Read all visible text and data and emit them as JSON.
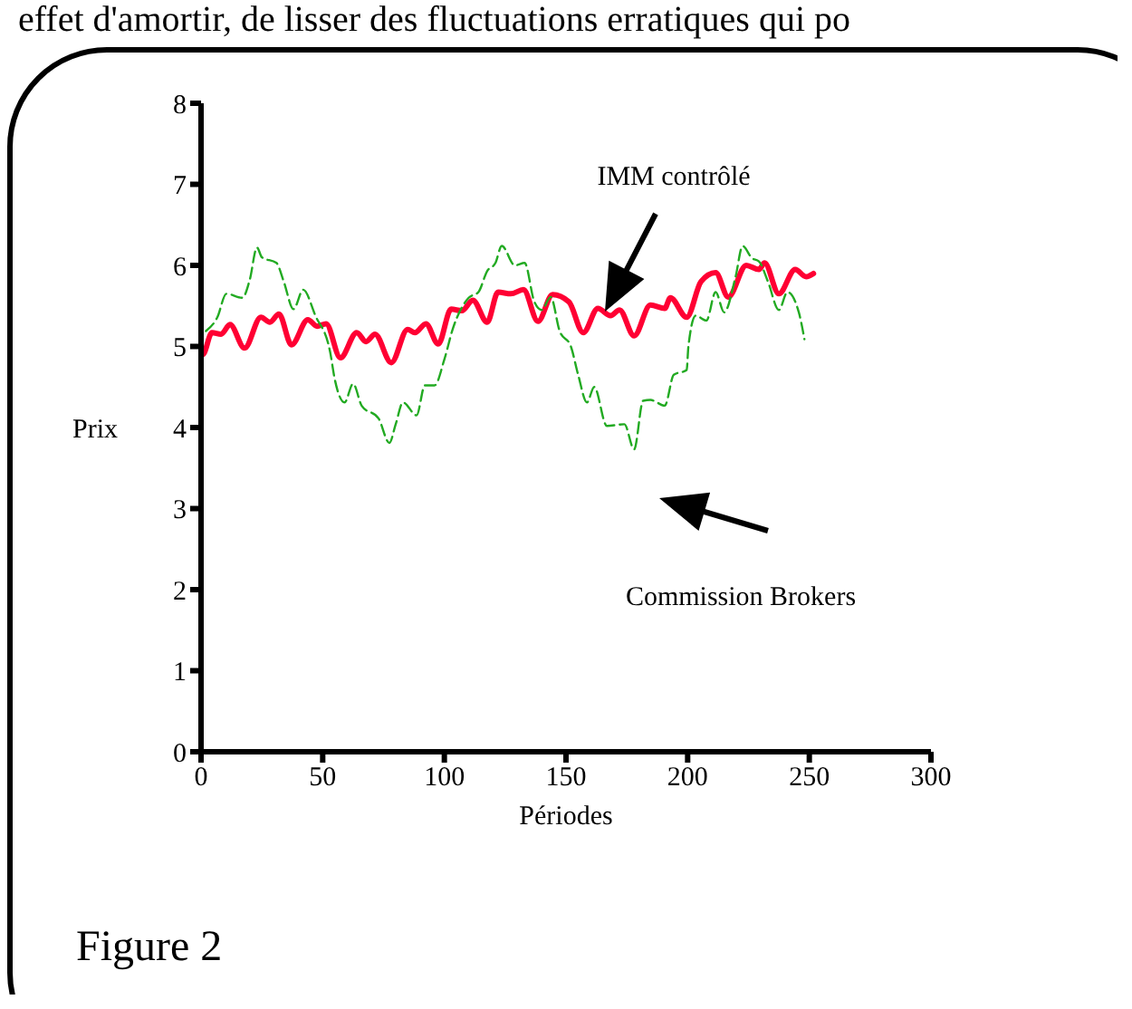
{
  "chart_data": {
    "type": "line",
    "xlabel": "Périodes",
    "ylabel": "Prix",
    "xlim": [
      0,
      300
    ],
    "xticks": [
      0,
      50,
      100,
      150,
      200,
      250,
      300
    ],
    "ylim": [
      0,
      8
    ],
    "yticks": [
      0,
      1,
      2,
      3,
      4,
      5,
      6,
      7,
      8
    ],
    "marker": "none",
    "series": [
      {
        "color": "#ff0033",
        "line_style": "solid",
        "x": [
          0,
          0.7,
          4.5,
          8.2,
          11.9,
          17.9,
          24.6,
          28.3,
          32,
          37.2,
          43.9,
          47.7,
          51.4,
          57.3,
          64,
          67.8,
          71.5,
          78.2,
          84.9,
          87.9,
          92.4,
          97.5,
          102.8,
          107.2,
          111.7,
          117.6,
          122.1,
          127.3,
          132.5,
          138.5,
          144.5,
          151.2,
          157.1,
          163.1,
          168.3,
          172,
          178,
          184.7,
          190.6,
          192.9,
          199.6,
          205.5,
          211.5,
          216.7,
          224.1,
          229.3,
          231.6,
          237.5,
          244.2,
          248.7,
          251.7
        ],
        "values": [
          4.95,
          4.9,
          5.17,
          5.15,
          5.27,
          4.98,
          5.36,
          5.3,
          5.4,
          5.02,
          5.33,
          5.25,
          5.28,
          4.86,
          5.17,
          5.06,
          5.15,
          4.8,
          5.21,
          5.17,
          5.28,
          5.03,
          5.46,
          5.44,
          5.57,
          5.3,
          5.67,
          5.65,
          5.7,
          5.31,
          5.64,
          5.55,
          5.17,
          5.47,
          5.38,
          5.45,
          5.13,
          5.51,
          5.47,
          5.6,
          5.36,
          5.8,
          5.91,
          5.61,
          6.0,
          5.95,
          6.03,
          5.65,
          5.95,
          5.86,
          5.9
        ]
      },
      {
        "color": "#22aa22",
        "line_style": "dashed",
        "x": [
          2,
          6.7,
          10.4,
          17,
          20,
          23,
          25,
          31,
          34,
          38,
          42,
          47,
          53,
          55,
          59,
          62.5,
          66,
          73,
          77.4,
          80,
          83,
          88.6,
          92,
          96,
          100,
          103.5,
          110,
          114,
          117.6,
          121,
          123.6,
          129,
          133,
          137,
          140,
          143.7,
          147.4,
          152,
          155,
          158.6,
          161.6,
          166.8,
          174,
          178,
          181.7,
          184.7,
          190.6,
          194.3,
          199.6,
          200.3,
          203.3,
          207.7,
          211.5,
          215,
          219.7,
          222.6,
          226.4,
          229.3,
          233,
          237.5,
          241,
          245.7,
          248
        ],
        "values": [
          5.19,
          5.36,
          5.65,
          5.6,
          5.82,
          6.22,
          6.1,
          6.03,
          5.8,
          5.46,
          5.7,
          5.38,
          4.94,
          4.59,
          4.31,
          4.54,
          4.27,
          4.11,
          3.81,
          4.04,
          4.31,
          4.15,
          4.52,
          4.52,
          4.84,
          5.22,
          5.6,
          5.67,
          5.93,
          6.03,
          6.24,
          6.0,
          6.03,
          5.55,
          5.45,
          5.61,
          5.19,
          5.0,
          4.65,
          4.31,
          4.5,
          4.02,
          4.04,
          3.73,
          4.33,
          4.34,
          4.27,
          4.65,
          4.71,
          5.0,
          5.38,
          5.32,
          5.67,
          5.42,
          5.86,
          6.24,
          6.09,
          6.05,
          5.8,
          5.45,
          5.67,
          5.42,
          5.09
        ]
      }
    ],
    "annotations": [
      "effet d'amortir, de lisser des fluctuations erratiques qui po",
      "Figure 2",
      "IMM contrôlé",
      "Commission Brokers"
    ]
  }
}
